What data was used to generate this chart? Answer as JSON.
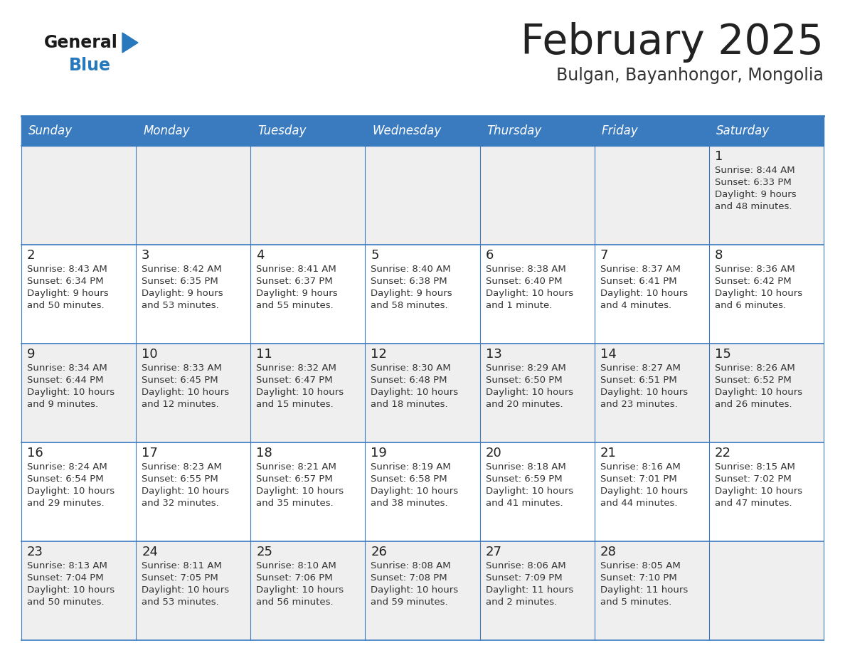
{
  "title": "February 2025",
  "subtitle": "Bulgan, Bayanhongor, Mongolia",
  "days_of_week": [
    "Sunday",
    "Monday",
    "Tuesday",
    "Wednesday",
    "Thursday",
    "Friday",
    "Saturday"
  ],
  "header_bg": "#3a7abf",
  "header_text_color": "#ffffff",
  "cell_bg_white": "#ffffff",
  "cell_bg_light": "#efefef",
  "border_color": "#3a7abf",
  "day_number_color": "#222222",
  "info_text_color": "#333333",
  "title_color": "#222222",
  "subtitle_color": "#333333",
  "logo_general_color": "#1a1a1a",
  "logo_blue_color": "#2878be",
  "calendar_data": [
    [
      null,
      null,
      null,
      null,
      null,
      null,
      {
        "day": 1,
        "sunrise": "8:44 AM",
        "sunset": "6:33 PM",
        "daylight": "9 hours and 48 minutes."
      }
    ],
    [
      {
        "day": 2,
        "sunrise": "8:43 AM",
        "sunset": "6:34 PM",
        "daylight": "9 hours and 50 minutes."
      },
      {
        "day": 3,
        "sunrise": "8:42 AM",
        "sunset": "6:35 PM",
        "daylight": "9 hours and 53 minutes."
      },
      {
        "day": 4,
        "sunrise": "8:41 AM",
        "sunset": "6:37 PM",
        "daylight": "9 hours and 55 minutes."
      },
      {
        "day": 5,
        "sunrise": "8:40 AM",
        "sunset": "6:38 PM",
        "daylight": "9 hours and 58 minutes."
      },
      {
        "day": 6,
        "sunrise": "8:38 AM",
        "sunset": "6:40 PM",
        "daylight": "10 hours and 1 minute."
      },
      {
        "day": 7,
        "sunrise": "8:37 AM",
        "sunset": "6:41 PM",
        "daylight": "10 hours and 4 minutes."
      },
      {
        "day": 8,
        "sunrise": "8:36 AM",
        "sunset": "6:42 PM",
        "daylight": "10 hours and 6 minutes."
      }
    ],
    [
      {
        "day": 9,
        "sunrise": "8:34 AM",
        "sunset": "6:44 PM",
        "daylight": "10 hours and 9 minutes."
      },
      {
        "day": 10,
        "sunrise": "8:33 AM",
        "sunset": "6:45 PM",
        "daylight": "10 hours and 12 minutes."
      },
      {
        "day": 11,
        "sunrise": "8:32 AM",
        "sunset": "6:47 PM",
        "daylight": "10 hours and 15 minutes."
      },
      {
        "day": 12,
        "sunrise": "8:30 AM",
        "sunset": "6:48 PM",
        "daylight": "10 hours and 18 minutes."
      },
      {
        "day": 13,
        "sunrise": "8:29 AM",
        "sunset": "6:50 PM",
        "daylight": "10 hours and 20 minutes."
      },
      {
        "day": 14,
        "sunrise": "8:27 AM",
        "sunset": "6:51 PM",
        "daylight": "10 hours and 23 minutes."
      },
      {
        "day": 15,
        "sunrise": "8:26 AM",
        "sunset": "6:52 PM",
        "daylight": "10 hours and 26 minutes."
      }
    ],
    [
      {
        "day": 16,
        "sunrise": "8:24 AM",
        "sunset": "6:54 PM",
        "daylight": "10 hours and 29 minutes."
      },
      {
        "day": 17,
        "sunrise": "8:23 AM",
        "sunset": "6:55 PM",
        "daylight": "10 hours and 32 minutes."
      },
      {
        "day": 18,
        "sunrise": "8:21 AM",
        "sunset": "6:57 PM",
        "daylight": "10 hours and 35 minutes."
      },
      {
        "day": 19,
        "sunrise": "8:19 AM",
        "sunset": "6:58 PM",
        "daylight": "10 hours and 38 minutes."
      },
      {
        "day": 20,
        "sunrise": "8:18 AM",
        "sunset": "6:59 PM",
        "daylight": "10 hours and 41 minutes."
      },
      {
        "day": 21,
        "sunrise": "8:16 AM",
        "sunset": "7:01 PM",
        "daylight": "10 hours and 44 minutes."
      },
      {
        "day": 22,
        "sunrise": "8:15 AM",
        "sunset": "7:02 PM",
        "daylight": "10 hours and 47 minutes."
      }
    ],
    [
      {
        "day": 23,
        "sunrise": "8:13 AM",
        "sunset": "7:04 PM",
        "daylight": "10 hours and 50 minutes."
      },
      {
        "day": 24,
        "sunrise": "8:11 AM",
        "sunset": "7:05 PM",
        "daylight": "10 hours and 53 minutes."
      },
      {
        "day": 25,
        "sunrise": "8:10 AM",
        "sunset": "7:06 PM",
        "daylight": "10 hours and 56 minutes."
      },
      {
        "day": 26,
        "sunrise": "8:08 AM",
        "sunset": "7:08 PM",
        "daylight": "10 hours and 59 minutes."
      },
      {
        "day": 27,
        "sunrise": "8:06 AM",
        "sunset": "7:09 PM",
        "daylight": "11 hours and 2 minutes."
      },
      {
        "day": 28,
        "sunrise": "8:05 AM",
        "sunset": "7:10 PM",
        "daylight": "11 hours and 5 minutes."
      },
      null
    ]
  ]
}
